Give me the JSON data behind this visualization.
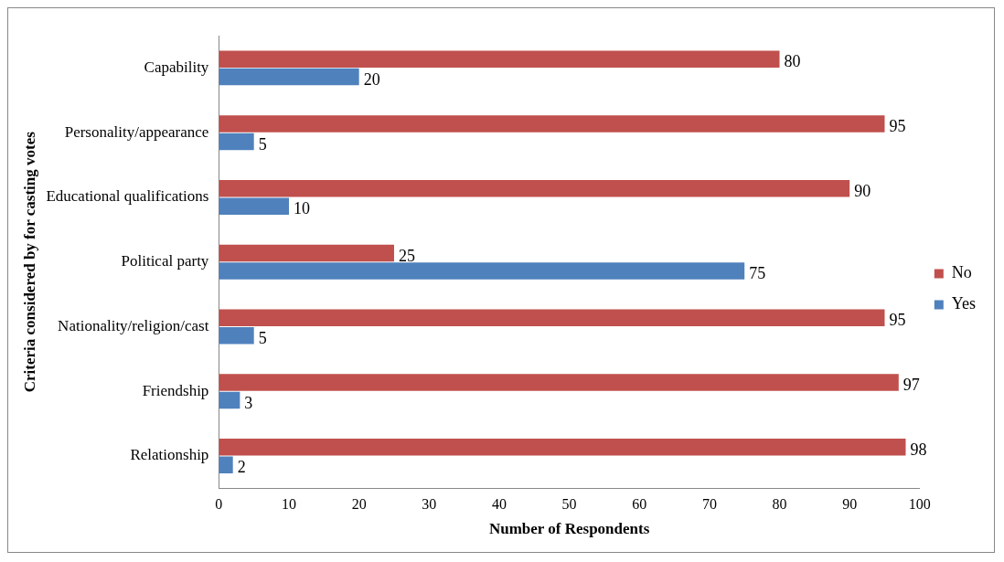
{
  "chart_data": {
    "type": "bar",
    "orientation": "horizontal",
    "xlabel": "Number of Respondents",
    "ylabel": "Criteria considered by for casting votes",
    "categories": [
      "Capability",
      "Personality/appearance",
      "Educational qualifications",
      "Political party",
      "Nationality/religion/cast",
      "Friendship",
      "Relationship"
    ],
    "series": [
      {
        "name": "No",
        "color": "#c0504d",
        "values": [
          80,
          95,
          90,
          25,
          95,
          97,
          98
        ]
      },
      {
        "name": "Yes",
        "color": "#4f81bd",
        "values": [
          20,
          5,
          10,
          75,
          5,
          3,
          2
        ]
      }
    ],
    "xlim": [
      0,
      100
    ],
    "xticks": [
      0,
      10,
      20,
      30,
      40,
      50,
      60,
      70,
      80,
      90,
      100
    ],
    "grid": false,
    "legend": "right",
    "data_labels": true
  }
}
